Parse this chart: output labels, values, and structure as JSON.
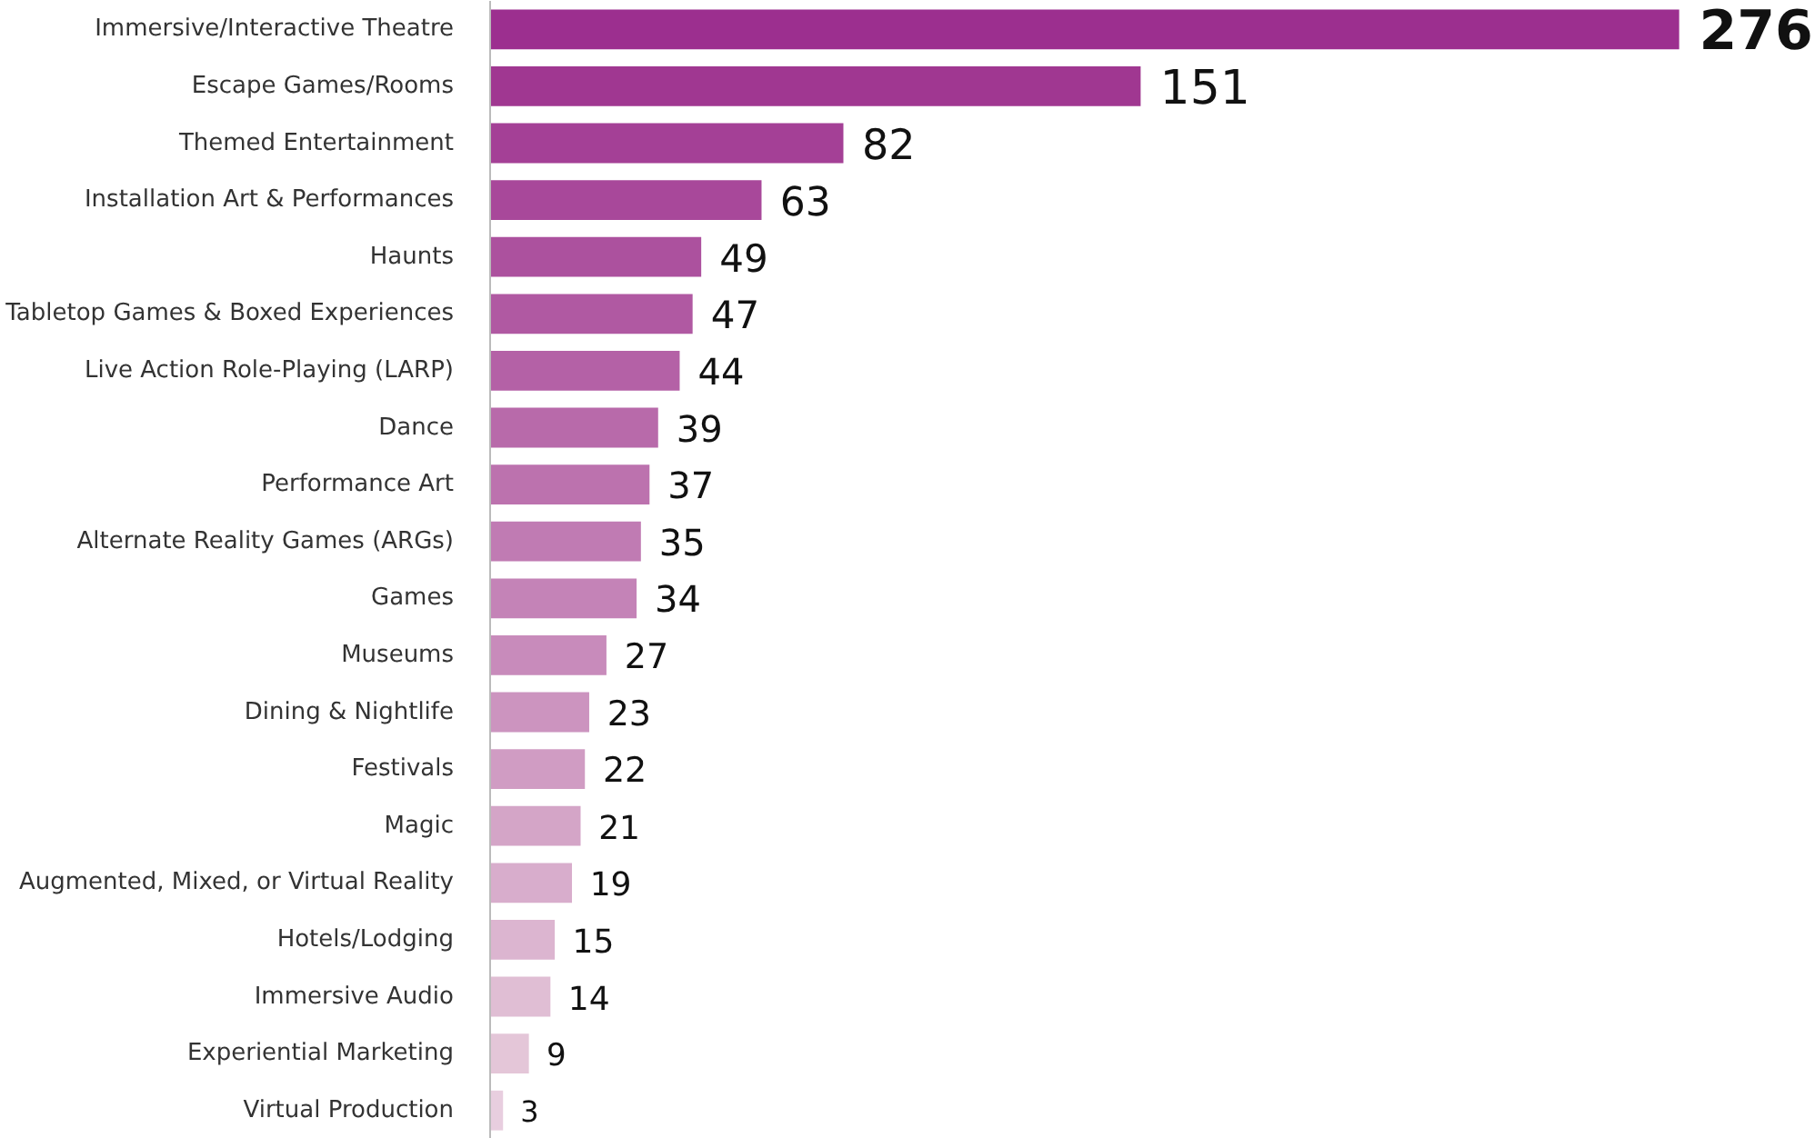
{
  "chart_data": {
    "type": "bar",
    "orientation": "horizontal",
    "data_labels": true,
    "grid": false,
    "categories": [
      "Immersive/Interactive Theatre",
      "Escape Games/Rooms",
      "Themed Entertainment",
      "Installation Art & Performances",
      "Haunts",
      "Tabletop Games & Boxed Experiences",
      "Live Action Role-Playing (LARP)",
      "Dance",
      "Performance Art",
      "Alternate Reality Games (ARGs)",
      "Games",
      "Museums",
      "Dining & Nightlife",
      "Festivals",
      "Magic",
      "Augmented, Mixed, or Virtual Reality",
      "Hotels/Lodging",
      "Immersive Audio",
      "Experiential Marketing",
      "Virtual Production"
    ],
    "values": [
      276,
      151,
      82,
      63,
      49,
      47,
      44,
      39,
      37,
      35,
      34,
      27,
      23,
      22,
      21,
      19,
      15,
      14,
      9,
      3
    ],
    "colors": [
      "#9c2f8f",
      "#a03791",
      "#a44096",
      "#a8489a",
      "#ac519e",
      "#b059a2",
      "#b461a6",
      "#b86aaa",
      "#bc72ae",
      "#c07bb3",
      "#c483b7",
      "#c88bbb",
      "#cc94bf",
      "#d09cc3",
      "#d4a5c7",
      "#d8adcc",
      "#dcb5d0",
      "#e0bed4",
      "#e4c6d8",
      "#e8cedf"
    ]
  }
}
